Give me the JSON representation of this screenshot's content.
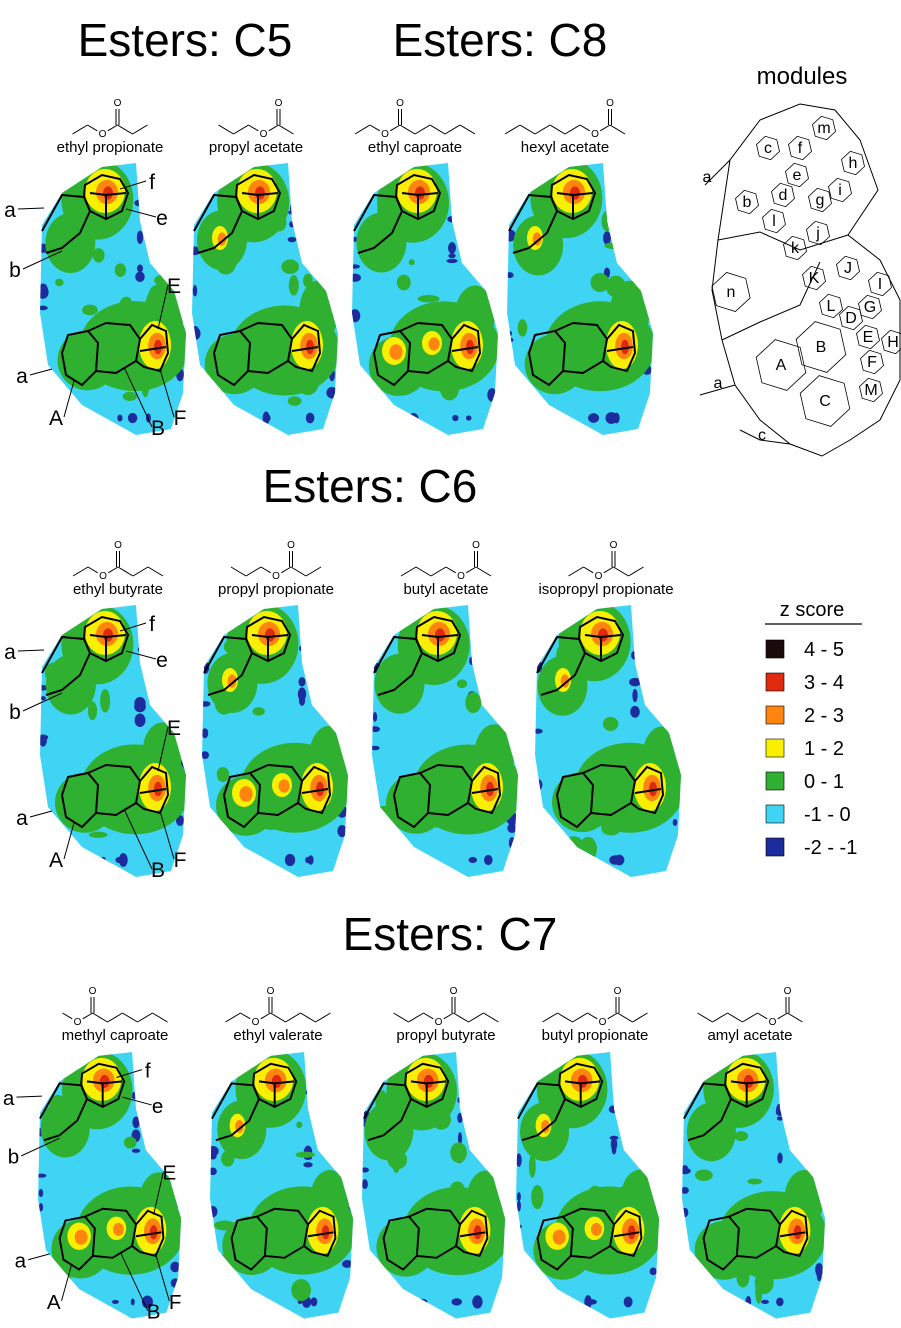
{
  "groups": [
    {
      "title": "Esters: C5",
      "panels": [
        "ethyl propionate",
        "propyl acetate"
      ]
    },
    {
      "title": "Esters: C8",
      "panels": [
        "ethyl caproate",
        "hexyl acetate"
      ]
    },
    {
      "title": "Esters: C6",
      "panels": [
        "ethyl butyrate",
        "propyl propionate",
        "butyl acetate",
        "isopropyl propionate"
      ]
    },
    {
      "title": "Esters: C7",
      "panels": [
        "methyl caproate",
        "ethyl valerate",
        "propyl butyrate",
        "butyl propionate",
        "amyl acetate"
      ]
    }
  ],
  "atom_label": "O",
  "map_labels": [
    "a",
    "b",
    "f",
    "e",
    "E",
    "a",
    "A",
    "B",
    "F"
  ],
  "modules": {
    "title": "modules",
    "labels": [
      "m",
      "c",
      "f",
      "h",
      "e",
      "d",
      "g",
      "i",
      "b",
      "l",
      "k",
      "j",
      "a",
      "n",
      "K",
      "J",
      "I",
      "L",
      "G",
      "D",
      "E",
      "H",
      "B",
      "A",
      "F",
      "M",
      "C",
      "a",
      "c"
    ]
  },
  "legend": {
    "title": "z score",
    "entries": [
      {
        "label": "4 - 5",
        "color": "#1a0a08"
      },
      {
        "label": "3 - 4",
        "color": "#e02a10"
      },
      {
        "label": "2 - 3",
        "color": "#ff8410"
      },
      {
        "label": "1 - 2",
        "color": "#f8f000"
      },
      {
        "label": "0 - 1",
        "color": "#30b030"
      },
      {
        "label": "-1 - 0",
        "color": "#40d4f4"
      },
      {
        "label": "-2 - -1",
        "color": "#1c2c9c"
      }
    ]
  }
}
